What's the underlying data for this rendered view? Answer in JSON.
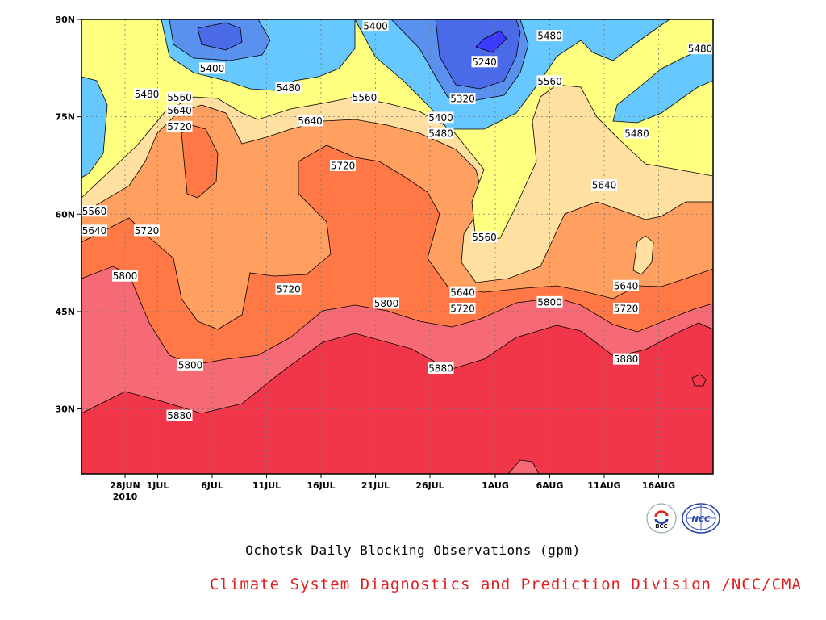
{
  "chart_data": {
    "type": "contour",
    "title": "Ochotsk Daily Blocking Observations (gpm)",
    "credit": "Climate System Diagnostics and Prediction Division /NCC/CMA",
    "x_ticks": [
      "28JUN",
      "1JUL",
      "6JUL",
      "11JUL",
      "16JUL",
      "21JUL",
      "26JUL",
      "1AUG",
      "6AUG",
      "11AUG",
      "16AUG"
    ],
    "x_year_label": "2010",
    "y_ticks": [
      "90N",
      "75N",
      "60N",
      "45N",
      "30N"
    ],
    "xlim": [
      "2010-06-24",
      "2010-08-21"
    ],
    "ylim": [
      20,
      90
    ],
    "grid": "dotted",
    "levels": [
      5240,
      5320,
      5400,
      5480,
      5560,
      5640,
      5720,
      5800,
      5880
    ],
    "colors": {
      "below_5240": "#3a3aff",
      "5240_5320": "#4b6ae8",
      "5320_5400": "#5a90ee",
      "5400_5480": "#66c8ff",
      "5480_5560": "#ffff80",
      "5560_5640": "#ffe0a0",
      "5640_5720": "#ffa060",
      "5720_5800": "#ff7845",
      "5800_5880": "#f56a75",
      "above_5880": "#f2364a"
    },
    "contour_labels": [
      {
        "value": "5400",
        "x": "2010-07-21",
        "y": 89.0
      },
      {
        "value": "5480",
        "x": "2010-08-06",
        "y": 87.5
      },
      {
        "value": "5480",
        "x": "2010-08-20",
        "y": 85.5
      },
      {
        "value": "5400",
        "x": "2010-07-06",
        "y": 82.5
      },
      {
        "value": "5240",
        "x": "2010-07-31",
        "y": 83.5
      },
      {
        "value": "5480",
        "x": "2010-07-13",
        "y": 79.5
      },
      {
        "value": "5480",
        "x": "2010-06-30",
        "y": 78.5
      },
      {
        "value": "5560",
        "x": "2010-07-03",
        "y": 78.0
      },
      {
        "value": "5560",
        "x": "2010-07-20",
        "y": 78.0
      },
      {
        "value": "5320",
        "x": "2010-07-29",
        "y": 77.8
      },
      {
        "value": "5560",
        "x": "2010-08-06",
        "y": 80.5
      },
      {
        "value": "5640",
        "x": "2010-07-03",
        "y": 76.0
      },
      {
        "value": "5400",
        "x": "2010-07-27",
        "y": 74.9
      },
      {
        "value": "5640",
        "x": "2010-07-15",
        "y": 74.4
      },
      {
        "value": "5720",
        "x": "2010-07-03",
        "y": 73.5
      },
      {
        "value": "5480",
        "x": "2010-07-27",
        "y": 72.5
      },
      {
        "value": "5480",
        "x": "2010-08-14",
        "y": 72.5
      },
      {
        "value": "5720",
        "x": "2010-07-18",
        "y": 67.5
      },
      {
        "value": "5640",
        "x": "2010-08-11",
        "y": 64.5
      },
      {
        "value": "5560",
        "x": "2010-06-25",
        "y": 60.5
      },
      {
        "value": "5640",
        "x": "2010-06-25",
        "y": 57.5
      },
      {
        "value": "5720",
        "x": "2010-06-30",
        "y": 57.5
      },
      {
        "value": "5560",
        "x": "2010-07-31",
        "y": 56.5
      },
      {
        "value": "5800",
        "x": "2010-06-28",
        "y": 50.5
      },
      {
        "value": "5720",
        "x": "2010-07-13",
        "y": 48.5
      },
      {
        "value": "5640",
        "x": "2010-07-29",
        "y": 48.0
      },
      {
        "value": "5640",
        "x": "2010-08-13",
        "y": 49.0
      },
      {
        "value": "5800",
        "x": "2010-07-22",
        "y": 46.3
      },
      {
        "value": "5800",
        "x": "2010-08-06",
        "y": 46.5
      },
      {
        "value": "5720",
        "x": "2010-07-29",
        "y": 45.5
      },
      {
        "value": "5720",
        "x": "2010-08-13",
        "y": 45.5
      },
      {
        "value": "5880",
        "x": "2010-08-13",
        "y": 37.7
      },
      {
        "value": "5800",
        "x": "2010-07-04",
        "y": 36.8
      },
      {
        "value": "5880",
        "x": "2010-07-27",
        "y": 36.3
      },
      {
        "value": "5880",
        "x": "2010-07-03",
        "y": 29.0
      }
    ]
  },
  "logos": {
    "bcc": "BCC",
    "ncc": "NCC"
  }
}
